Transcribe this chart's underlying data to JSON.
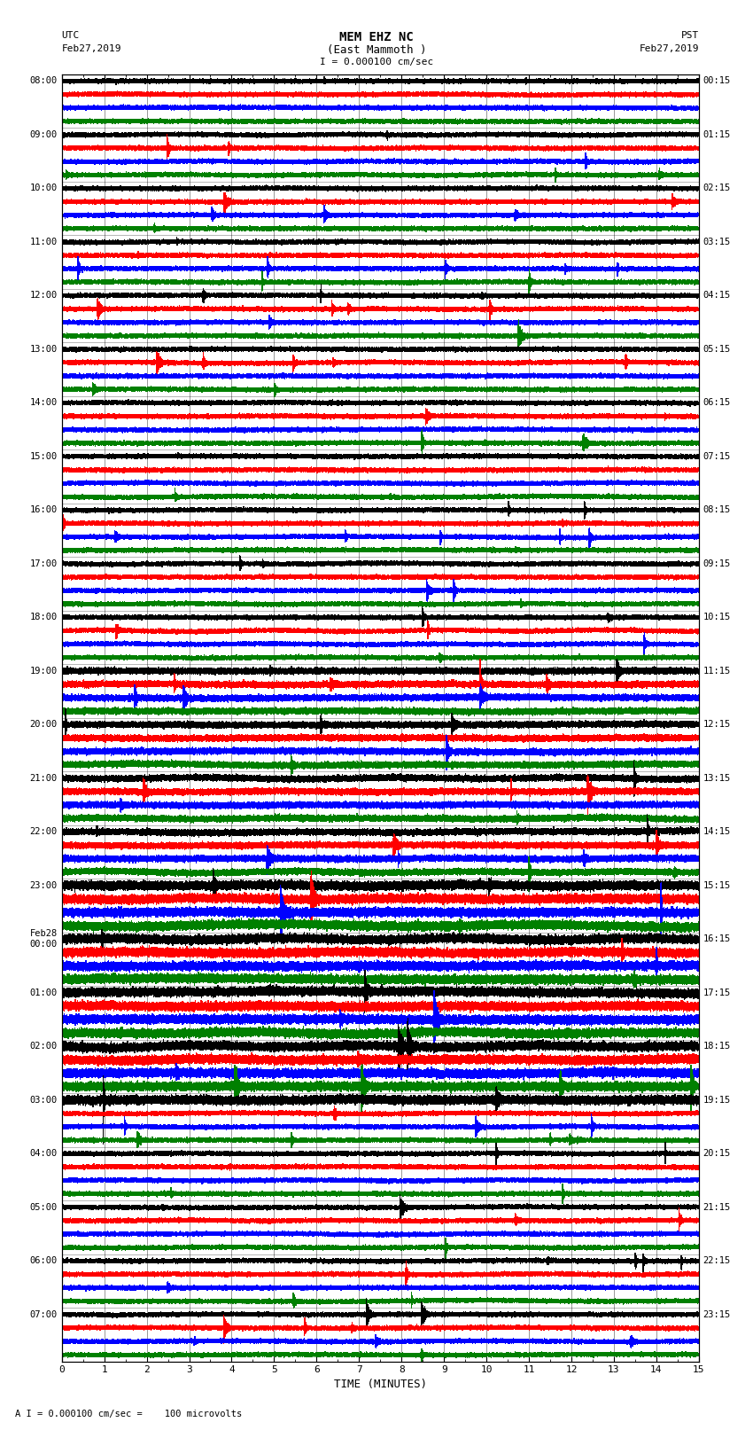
{
  "title_line1": "MEM EHZ NC",
  "title_line2": "(East Mammoth )",
  "scale_label": "I = 0.000100 cm/sec",
  "bottom_label": "A I = 0.000100 cm/sec =    100 microvolts",
  "utc_label1": "UTC",
  "utc_label2": "Feb27,2019",
  "pst_label1": "PST",
  "pst_label2": "Feb27,2019",
  "xlabel": "TIME (MINUTES)",
  "left_times_hourly": [
    "08:00",
    "09:00",
    "10:00",
    "11:00",
    "12:00",
    "13:00",
    "14:00",
    "15:00",
    "16:00",
    "17:00",
    "18:00",
    "19:00",
    "20:00",
    "21:00",
    "22:00",
    "23:00",
    "Feb28\n00:00",
    "01:00",
    "02:00",
    "03:00",
    "04:00",
    "05:00",
    "06:00",
    "07:00"
  ],
  "right_times_hourly": [
    "00:15",
    "01:15",
    "02:15",
    "03:15",
    "04:15",
    "05:15",
    "06:15",
    "07:15",
    "08:15",
    "09:15",
    "10:15",
    "11:15",
    "12:15",
    "13:15",
    "14:15",
    "15:15",
    "16:15",
    "17:15",
    "18:15",
    "19:15",
    "20:15",
    "21:15",
    "22:15",
    "23:15"
  ],
  "colors": [
    "black",
    "red",
    "blue",
    "green"
  ],
  "n_rows": 96,
  "n_minutes": 15,
  "sample_rate": 100,
  "bg_color": "white",
  "line_width": 0.35,
  "amplitude_scale": 0.18,
  "figsize": [
    8.5,
    16.13
  ],
  "dpi": 100
}
